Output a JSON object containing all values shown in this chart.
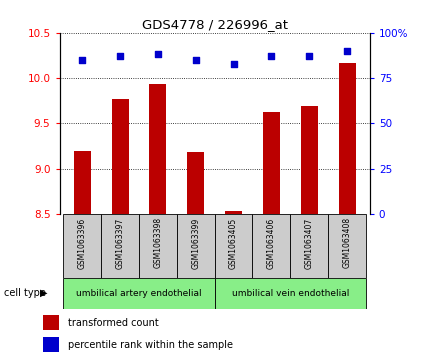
{
  "title": "GDS4778 / 226996_at",
  "samples": [
    "GSM1063396",
    "GSM1063397",
    "GSM1063398",
    "GSM1063399",
    "GSM1063405",
    "GSM1063406",
    "GSM1063407",
    "GSM1063408"
  ],
  "bar_values": [
    9.2,
    9.77,
    9.93,
    9.18,
    8.54,
    9.63,
    9.69,
    10.17
  ],
  "percentile_values": [
    85,
    87,
    88,
    85,
    83,
    87,
    87,
    90
  ],
  "ylim_left": [
    8.5,
    10.5
  ],
  "ylim_right": [
    0,
    100
  ],
  "yticks_left": [
    8.5,
    9.0,
    9.5,
    10.0,
    10.5
  ],
  "yticks_right": [
    0,
    25,
    50,
    75,
    100
  ],
  "ytick_right_labels": [
    "0",
    "25",
    "50",
    "75",
    "100%"
  ],
  "bar_color": "#bb0000",
  "point_color": "#0000cc",
  "cell_type_groups": [
    {
      "label": "umbilical artery endothelial",
      "start": 0,
      "end": 4,
      "color": "#88ee88"
    },
    {
      "label": "umbilical vein endothelial",
      "start": 4,
      "end": 8,
      "color": "#88ee88"
    }
  ],
  "cell_type_label": "cell type",
  "legend_bar_label": "transformed count",
  "legend_point_label": "percentile rank within the sample",
  "tick_area_color": "#cccccc",
  "bar_width": 0.45
}
